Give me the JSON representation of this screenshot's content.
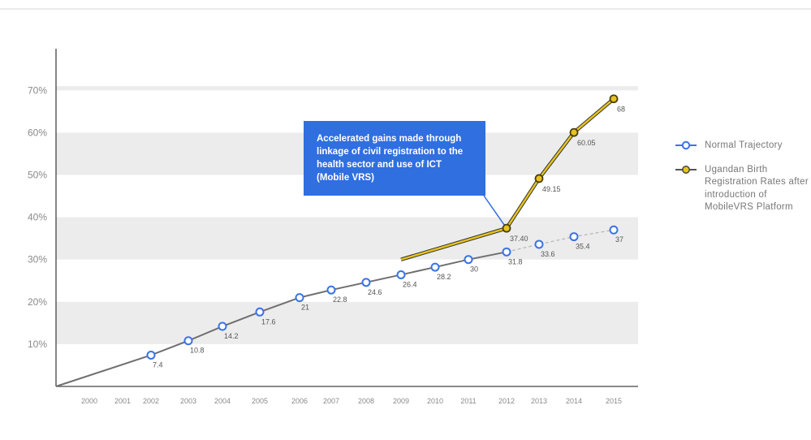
{
  "colors": {
    "normal": "#3b73e6",
    "mobile": "#e6c31c",
    "mobile_marker": "#b08a17",
    "line": "#6f6f6f",
    "callout": "#2f6fe0"
  },
  "callout": {
    "text": "Accelerated gains made through linkage of civil registration to the health sector and use of ICT (Mobile VRS)"
  },
  "legend": [
    {
      "label": "Normal Trajectory",
      "color": "#3b73e6"
    },
    {
      "label": "Ugandan Birth Registration Rates after introduction of MobileVRS Platform",
      "color": "#b08a17"
    }
  ],
  "chart_data": {
    "type": "line",
    "title": "",
    "xlabel": "",
    "ylabel": "",
    "ylim": [
      0,
      70
    ],
    "yticks": [
      "10%",
      "20%",
      "30%",
      "40%",
      "50%",
      "60%",
      "70%"
    ],
    "x_categories": [
      "2000",
      "2001",
      "2002",
      "2003",
      "2004",
      "2005",
      "2006",
      "2007",
      "2008",
      "2009",
      "2010",
      "2011",
      "2012",
      "2013",
      "2014",
      "2015"
    ],
    "grid": "alternating horizontal bands",
    "legend_position": "right",
    "series": [
      {
        "name": "Normal Trajectory",
        "x": [
          "2002",
          "2003",
          "2004",
          "2005",
          "2006",
          "2007",
          "2008",
          "2009",
          "2010",
          "2011",
          "2012",
          "2013",
          "2014",
          "2015"
        ],
        "values": [
          7.4,
          10.8,
          14.2,
          17.6,
          21,
          22.8,
          24.6,
          26.4,
          28.2,
          30,
          31.8,
          33.6,
          35.4,
          37
        ],
        "labels": [
          "7.4",
          "10.8",
          "14.2",
          "17.6",
          "21",
          "22.8",
          "24.6",
          "26.4",
          "28.2",
          "30",
          "31.8",
          "33.6",
          "35.4",
          "37"
        ],
        "solid_until": "2012",
        "dashed_after": "2012"
      },
      {
        "name": "Ugandan Birth Registration Rates after introduction of MobileVRS Platform",
        "x": [
          "2009",
          "2012",
          "2013",
          "2014",
          "2015"
        ],
        "values": [
          30,
          37.4,
          49.15,
          60.05,
          68
        ],
        "labels": [
          "",
          "37.40",
          "49.15",
          "60.05",
          "68"
        ]
      }
    ]
  }
}
